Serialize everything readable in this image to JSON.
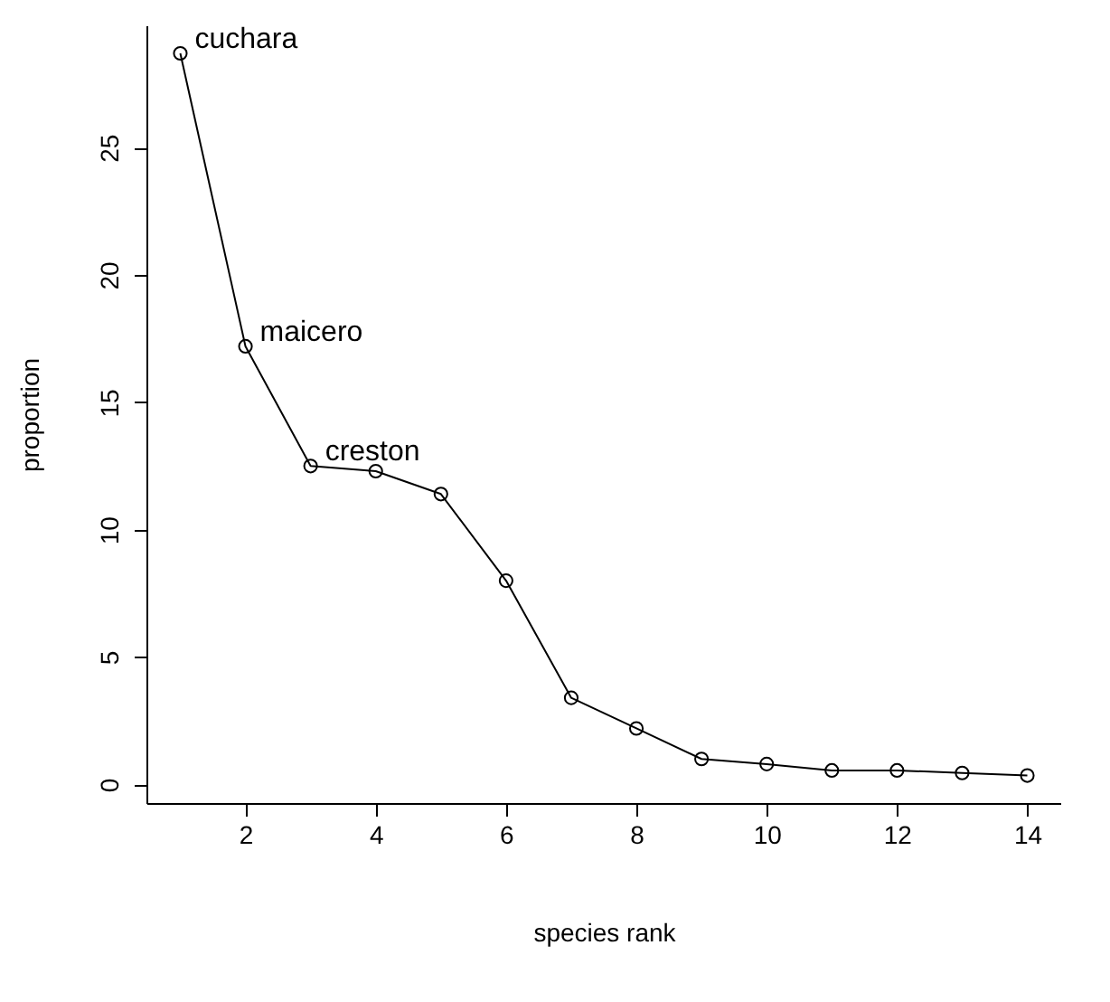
{
  "chart_data": {
    "type": "line",
    "xlabel": "species rank",
    "ylabel": "proportion",
    "x": [
      1,
      2,
      3,
      4,
      5,
      6,
      7,
      8,
      9,
      10,
      11,
      12,
      13,
      14
    ],
    "series": [
      {
        "color": "#000000",
        "values": [
          28.7,
          17.2,
          12.5,
          12.3,
          11.4,
          8.0,
          3.4,
          2.2,
          1.0,
          0.8,
          0.55,
          0.55,
          0.45,
          0.35
        ]
      }
    ],
    "marker": "circle",
    "line_style": "solid",
    "grid": false,
    "xlim": [
      0.48,
      14.52
    ],
    "ylim": [
      -0.73,
      29.8
    ],
    "xticks": [
      2,
      4,
      6,
      8,
      10,
      12,
      14
    ],
    "yticks": [
      0,
      5,
      10,
      15,
      20,
      25
    ],
    "annotations": [
      {
        "text": "cuchara",
        "x": 1,
        "y": 28.7
      },
      {
        "text": "maicero",
        "x": 2,
        "y": 17.2
      },
      {
        "text": "creston",
        "x": 3,
        "y": 12.5
      }
    ]
  }
}
